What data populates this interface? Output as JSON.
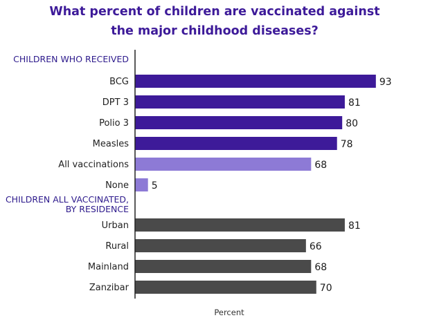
{
  "chart_data": {
    "type": "bar",
    "orientation": "horizontal",
    "title": [
      "What percent of children are vaccinated against",
      "the major childhood diseases?"
    ],
    "xlabel": "Percent",
    "xlim": [
      0,
      100
    ],
    "grid": false,
    "sections": [
      {
        "label": [
          "CHILDREN WHO RECEIVED"
        ],
        "categories": [
          "BCG",
          "DPT 3",
          "Polio 3",
          "Measles",
          "All vaccinations",
          "None"
        ],
        "values": [
          93,
          81,
          80,
          78,
          68,
          5
        ],
        "colors": [
          "#3d1a99",
          "#3d1a99",
          "#3d1a99",
          "#3d1a99",
          "#8d7ad6",
          "#8d7ad6"
        ]
      },
      {
        "label": [
          "CHILDREN ALL VACCINATED,",
          "BY RESIDENCE"
        ],
        "categories": [
          "Urban",
          "Rural",
          "Mainland",
          "Zanzibar"
        ],
        "values": [
          81,
          66,
          68,
          70
        ],
        "colors": [
          "#4a4a4a",
          "#4a4a4a",
          "#4a4a4a",
          "#4a4a4a"
        ]
      }
    ]
  },
  "colors": {
    "title": "#3d1a99",
    "section_label": "#2d1a8c",
    "axis": "#222222"
  }
}
